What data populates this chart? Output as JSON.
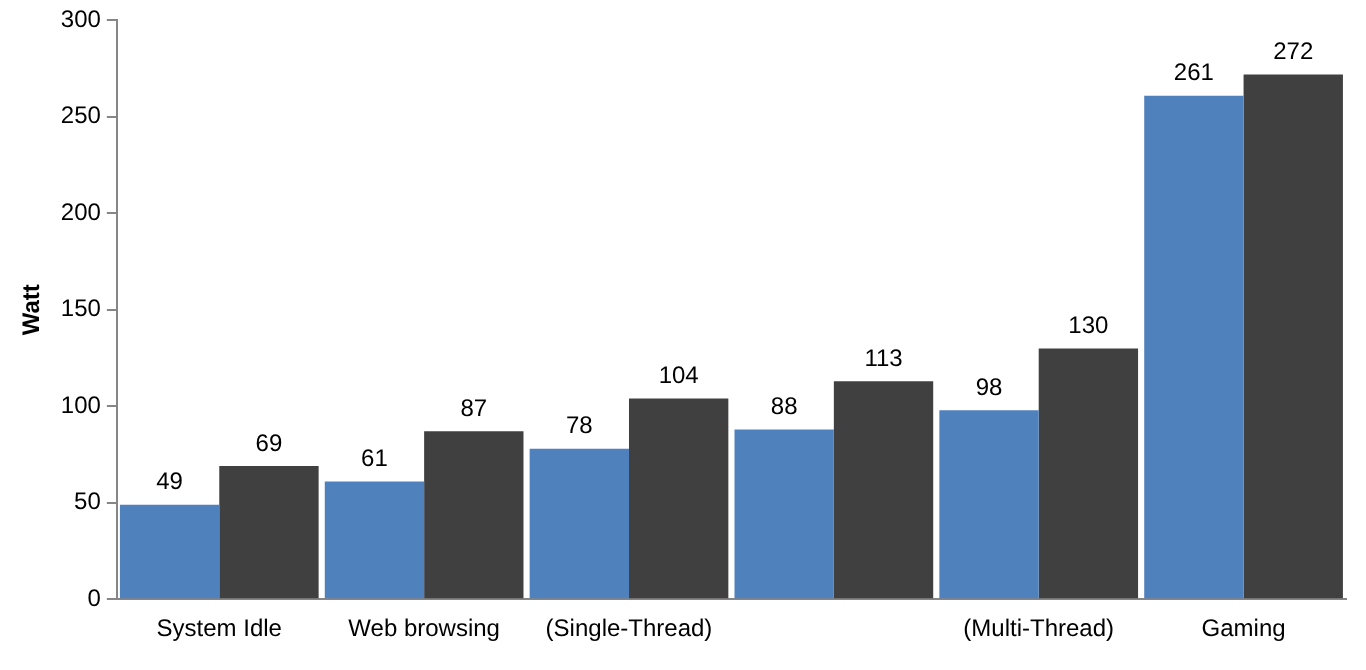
{
  "chart_data": {
    "type": "bar",
    "ylabel": "Watt",
    "categories": [
      "System Idle",
      "Web browsing",
      "(Single-Thread)",
      null,
      "(Multi-Thread)",
      "Gaming"
    ],
    "series": [
      {
        "color": "#4f81bd",
        "values": [
          49,
          61,
          78,
          88,
          98,
          261
        ]
      },
      {
        "color": "#404040",
        "values": [
          69,
          87,
          104,
          113,
          130,
          272
        ]
      }
    ],
    "ylim": [
      0,
      300
    ],
    "yticks": [
      0,
      50,
      100,
      150,
      200,
      250,
      300
    ],
    "grid": false,
    "legend": false,
    "data_labels": true
  }
}
